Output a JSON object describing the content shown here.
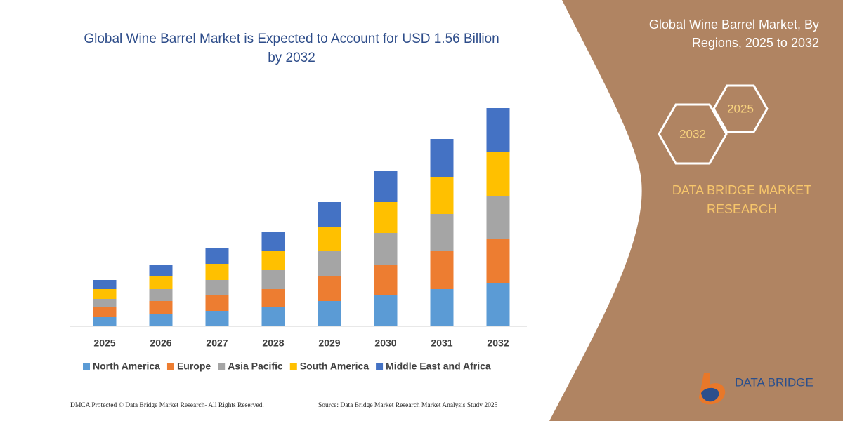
{
  "chart_data": {
    "type": "stacked-bar",
    "title": "Global Wine Barrel Market is Expected to Account for USD 1.56 Billion by 2032",
    "categories": [
      "2025",
      "2026",
      "2027",
      "2028",
      "2029",
      "2030",
      "2031",
      "2032"
    ],
    "series": [
      {
        "name": "North America",
        "color": "#5b9bd5",
        "values": [
          13,
          18,
          22,
          27,
          36,
          44,
          53,
          62
        ]
      },
      {
        "name": "Europe",
        "color": "#ed7d31",
        "values": [
          14,
          18,
          22,
          26,
          35,
          44,
          54,
          62
        ]
      },
      {
        "name": "Asia Pacific",
        "color": "#a5a5a5",
        "values": [
          12,
          17,
          22,
          27,
          36,
          45,
          53,
          62
        ]
      },
      {
        "name": "South America",
        "color": "#ffc000",
        "values": [
          14,
          18,
          23,
          27,
          35,
          44,
          53,
          63
        ]
      },
      {
        "name": "Middle East and Africa",
        "color": "#4472c4",
        "values": [
          13,
          17,
          22,
          27,
          35,
          45,
          54,
          62
        ]
      }
    ],
    "ylim": [
      0,
      320
    ]
  },
  "panel": {
    "title": "Global Wine Barrel Market, By Regions, 2025 to 2032",
    "hexagons": [
      "2025",
      "2032"
    ],
    "brand": "DATA BRIDGE MARKET RESEARCH",
    "logo": "DATA BRIDGE"
  },
  "footer": {
    "left": "DMCA Protected © Data Bridge Market Research- All Rights Reserved.",
    "right": "Source: Data Bridge Market Research  Market Analysis Study 2025"
  }
}
